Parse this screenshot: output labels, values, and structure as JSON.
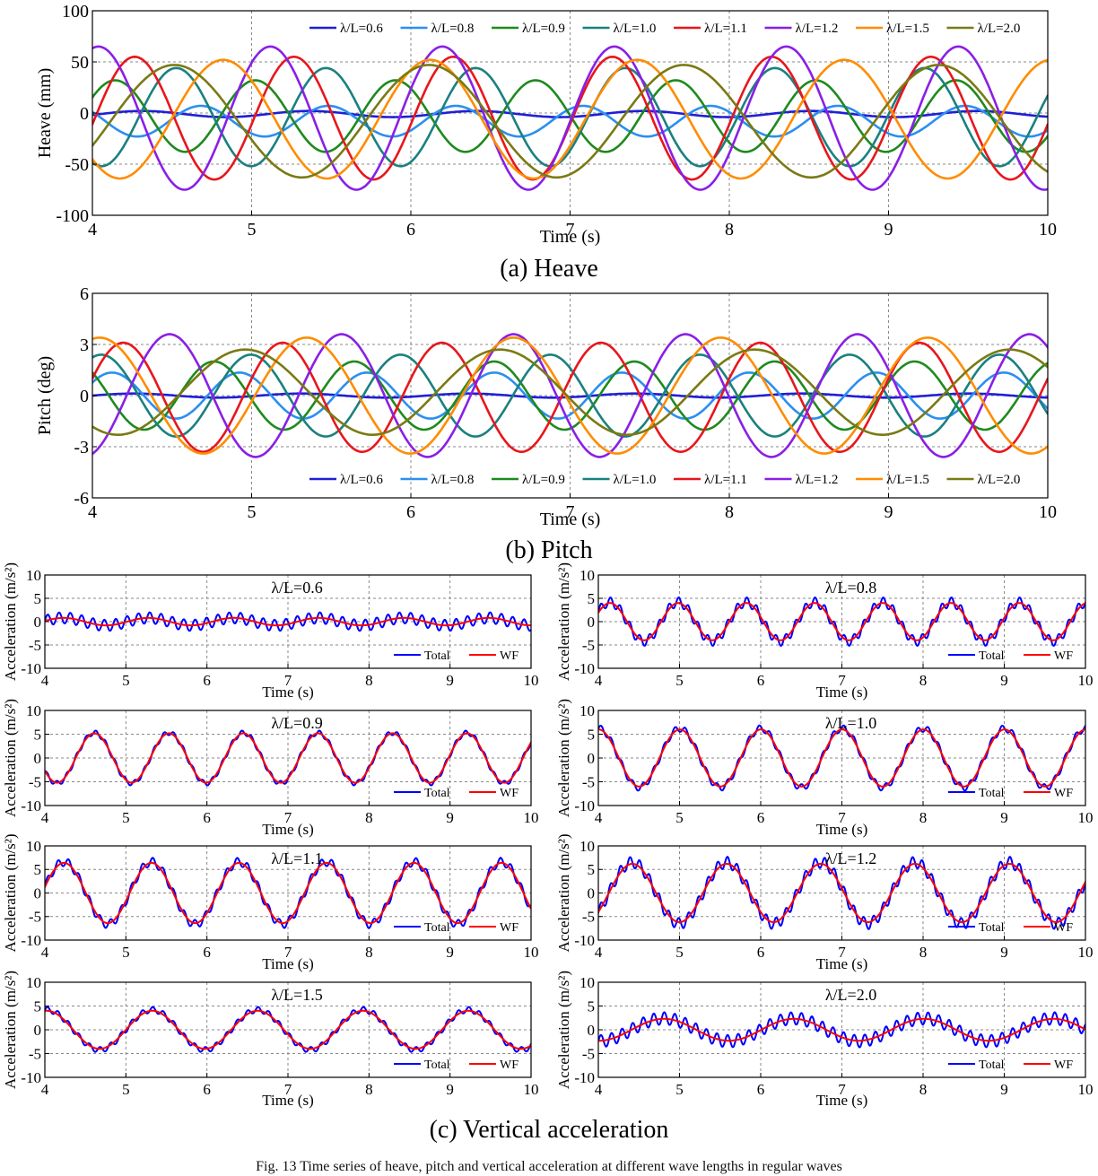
{
  "captions": {
    "a": "(a) Heave",
    "b": "(b) Pitch",
    "c": "(c) Vertical acceleration"
  },
  "bottom_caption": "Fig. 13 Time series of heave, pitch and vertical acceleration at different wave lengths in regular waves",
  "colors": {
    "lambda_0.6": "#1f1fd6",
    "lambda_0.8": "#2b8ff0",
    "lambda_0.9": "#1e8a1e",
    "lambda_1.0": "#1b8080",
    "lambda_1.1": "#e8161c",
    "lambda_1.2": "#8a1fe6",
    "lambda_1.5": "#ff8c00",
    "lambda_2.0": "#7a7a14",
    "total": "#0000ff",
    "wf": "#ff0000"
  },
  "chart_data": [
    {
      "id": "heave",
      "type": "line",
      "ylabel": "Heave (mm)",
      "xlabel": "Time (s)",
      "xlim": [
        4,
        10
      ],
      "ylim": [
        -100,
        100
      ],
      "xticks": [
        4,
        5,
        6,
        7,
        8,
        9,
        10
      ],
      "yticks": [
        -100,
        -50,
        0,
        50,
        100
      ],
      "grid": true,
      "legend_position": "top",
      "series": [
        {
          "name": "λ/L=0.6",
          "color_key": "lambda_0.6",
          "amplitude": 3,
          "period": 1.05,
          "phase": -0.3,
          "offset": -1
        },
        {
          "name": "λ/L=0.8",
          "color_key": "lambda_0.8",
          "amplitude": 15,
          "period": 0.8,
          "phase": 2.5,
          "offset": -8
        },
        {
          "name": "λ/L=0.9",
          "color_key": "lambda_0.9",
          "amplitude": 35,
          "period": 0.88,
          "phase": 0.55,
          "offset": -3
        },
        {
          "name": "λ/L=1.0",
          "color_key": "lambda_1.0",
          "amplitude": 48,
          "period": 0.94,
          "phase": -1.95,
          "offset": -4
        },
        {
          "name": "λ/L=1.1",
          "color_key": "lambda_1.1",
          "amplitude": 60,
          "period": 1.0,
          "phase": -0.1,
          "offset": -5
        },
        {
          "name": "λ/L=1.2",
          "color_key": "lambda_1.2",
          "amplitude": 70,
          "period": 1.08,
          "phase": 1.35,
          "offset": -5
        },
        {
          "name": "λ/L=1.5",
          "color_key": "lambda_1.5",
          "amplitude": 58,
          "period": 1.3,
          "phase": -2.4,
          "offset": -6
        },
        {
          "name": "λ/L=2.0",
          "color_key": "lambda_2.0",
          "amplitude": 55,
          "period": 1.6,
          "phase": -0.45,
          "offset": -8
        }
      ]
    },
    {
      "id": "pitch",
      "type": "line",
      "ylabel": "Pitch (deg)",
      "xlabel": "Time (s)",
      "xlim": [
        4,
        10
      ],
      "ylim": [
        -6,
        6
      ],
      "xticks": [
        4,
        5,
        6,
        7,
        8,
        9,
        10
      ],
      "yticks": [
        -6,
        -3,
        0,
        3,
        6
      ],
      "grid": true,
      "legend_position": "bottom",
      "series": [
        {
          "name": "λ/L=0.6",
          "color_key": "lambda_0.6",
          "amplitude": 0.12,
          "period": 1.05,
          "phase": 0.0,
          "offset": 0.0
        },
        {
          "name": "λ/L=0.8",
          "color_key": "lambda_0.8",
          "amplitude": 1.35,
          "period": 0.8,
          "phase": 0.6,
          "offset": 0.0
        },
        {
          "name": "λ/L=0.9",
          "color_key": "lambda_0.9",
          "amplitude": 2.0,
          "period": 0.88,
          "phase": 2.4,
          "offset": 0.0
        },
        {
          "name": "λ/L=1.0",
          "color_key": "lambda_1.0",
          "amplitude": 2.4,
          "period": 0.94,
          "phase": 1.2,
          "offset": 0.0
        },
        {
          "name": "λ/L=1.1",
          "color_key": "lambda_1.1",
          "amplitude": 3.2,
          "period": 1.0,
          "phase": 0.35,
          "offset": -0.1
        },
        {
          "name": "λ/L=1.2",
          "color_key": "lambda_1.2",
          "amplitude": 3.6,
          "period": 1.08,
          "phase": -1.25,
          "offset": 0.0
        },
        {
          "name": "λ/L=1.5",
          "color_key": "lambda_1.5",
          "amplitude": 3.4,
          "period": 1.3,
          "phase": 1.35,
          "offset": 0.0
        },
        {
          "name": "λ/L=2.0",
          "color_key": "lambda_2.0",
          "amplitude": 2.5,
          "period": 1.6,
          "phase": -2.2,
          "offset": 0.2
        }
      ]
    },
    {
      "id": "acc-0.6",
      "type": "line",
      "title": "λ/L=0.6",
      "ylabel": "Acceleration (m/s²)",
      "xlabel": "Time (s)",
      "xlim": [
        4,
        10
      ],
      "ylim": [
        -10,
        10
      ],
      "xticks": [
        4,
        5,
        6,
        7,
        8,
        9,
        10
      ],
      "yticks": [
        -10,
        -5,
        0,
        5,
        10
      ],
      "grid": true,
      "legend_position": "bottom-right",
      "series": [
        {
          "name": "Total",
          "color_key": "total",
          "amplitude": 0.8,
          "period": 1.05,
          "phase": 0.2,
          "hf_amplitude": 1.2,
          "hf_period": 0.14
        },
        {
          "name": "WF",
          "color_key": "wf",
          "amplitude": 0.8,
          "period": 1.05,
          "phase": 0.2
        }
      ]
    },
    {
      "id": "acc-0.8",
      "type": "line",
      "title": "λ/L=0.8",
      "ylabel": "Acceleration (m/s²)",
      "xlabel": "Time (s)",
      "xlim": [
        4,
        10
      ],
      "ylim": [
        -10,
        10
      ],
      "xticks": [
        4,
        5,
        6,
        7,
        8,
        9,
        10
      ],
      "yticks": [
        -10,
        -5,
        0,
        5,
        10
      ],
      "grid": true,
      "legend_position": "bottom-right",
      "series": [
        {
          "name": "Total",
          "color_key": "total",
          "amplitude": 4.2,
          "period": 0.84,
          "phase": 0.5,
          "hf_amplitude": 1.0,
          "hf_period": 0.12
        },
        {
          "name": "WF",
          "color_key": "wf",
          "amplitude": 4.0,
          "period": 0.84,
          "phase": 0.5
        }
      ]
    },
    {
      "id": "acc-0.9",
      "type": "line",
      "title": "λ/L=0.9",
      "ylabel": "Acceleration (m/s²)",
      "xlabel": "Time (s)",
      "xlim": [
        4,
        10
      ],
      "ylim": [
        -10,
        10
      ],
      "xticks": [
        4,
        5,
        6,
        7,
        8,
        9,
        10
      ],
      "yticks": [
        -10,
        -5,
        0,
        5,
        10
      ],
      "grid": true,
      "legend_position": "bottom-right",
      "series": [
        {
          "name": "Total",
          "color_key": "total",
          "amplitude": 5.3,
          "period": 0.92,
          "phase": -2.6,
          "hf_amplitude": 0.5,
          "hf_period": 0.12
        },
        {
          "name": "WF",
          "color_key": "wf",
          "amplitude": 5.2,
          "period": 0.92,
          "phase": -2.6
        }
      ]
    },
    {
      "id": "acc-1.0",
      "type": "line",
      "title": "λ/L=1.0",
      "ylabel": "Acceleration (m/s²)",
      "xlabel": "Time (s)",
      "xlim": [
        4,
        10
      ],
      "ylim": [
        -10,
        10
      ],
      "xticks": [
        4,
        5,
        6,
        7,
        8,
        9,
        10
      ],
      "yticks": [
        -10,
        -5,
        0,
        5,
        10
      ],
      "grid": true,
      "legend_position": "bottom-right",
      "series": [
        {
          "name": "Total",
          "color_key": "total",
          "amplitude": 6.2,
          "period": 1.0,
          "phase": 1.55,
          "hf_amplitude": 0.7,
          "hf_period": 0.13
        },
        {
          "name": "WF",
          "color_key": "wf",
          "amplitude": 6.0,
          "period": 1.0,
          "phase": 1.55
        }
      ]
    },
    {
      "id": "acc-1.1",
      "type": "line",
      "title": "λ/L=1.1",
      "ylabel": "Acceleration (m/s²)",
      "xlabel": "Time (s)",
      "xlim": [
        4,
        10
      ],
      "ylim": [
        -10,
        10
      ],
      "xticks": [
        4,
        5,
        6,
        7,
        8,
        9,
        10
      ],
      "yticks": [
        -10,
        -5,
        0,
        5,
        10
      ],
      "grid": true,
      "legend_position": "bottom-right",
      "series": [
        {
          "name": "Total",
          "color_key": "total",
          "amplitude": 6.6,
          "period": 1.08,
          "phase": 0.2,
          "hf_amplitude": 0.9,
          "hf_period": 0.13
        },
        {
          "name": "WF",
          "color_key": "wf",
          "amplitude": 6.4,
          "period": 1.08,
          "phase": 0.2
        }
      ]
    },
    {
      "id": "acc-1.2",
      "type": "line",
      "title": "λ/L=1.2",
      "ylabel": "Acceleration (m/s²)",
      "xlabel": "Time (s)",
      "xlim": [
        4,
        10
      ],
      "ylim": [
        -10,
        10
      ],
      "xticks": [
        4,
        5,
        6,
        7,
        8,
        9,
        10
      ],
      "yticks": [
        -10,
        -5,
        0,
        5,
        10
      ],
      "grid": true,
      "legend_position": "bottom-right",
      "series": [
        {
          "name": "Total",
          "color_key": "total",
          "amplitude": 6.5,
          "period": 1.16,
          "phase": -0.7,
          "hf_amplitude": 1.2,
          "hf_period": 0.12
        },
        {
          "name": "WF",
          "color_key": "wf",
          "amplitude": 6.2,
          "period": 1.16,
          "phase": -0.7
        }
      ]
    },
    {
      "id": "acc-1.5",
      "type": "line",
      "title": "λ/L=1.5",
      "ylabel": "Acceleration (m/s²)",
      "xlabel": "Time (s)",
      "xlim": [
        4,
        10
      ],
      "ylim": [
        -10,
        10
      ],
      "xticks": [
        4,
        5,
        6,
        7,
        8,
        9,
        10
      ],
      "yticks": [
        -10,
        -5,
        0,
        5,
        10
      ],
      "grid": true,
      "legend_position": "bottom-right",
      "series": [
        {
          "name": "Total",
          "color_key": "total",
          "amplitude": 4.2,
          "period": 1.3,
          "phase": 1.45,
          "hf_amplitude": 0.6,
          "hf_period": 0.13
        },
        {
          "name": "WF",
          "color_key": "wf",
          "amplitude": 4.0,
          "period": 1.3,
          "phase": 1.45
        }
      ]
    },
    {
      "id": "acc-2.0",
      "type": "line",
      "title": "λ/L=2.0",
      "ylabel": "Acceleration (m/s²)",
      "xlabel": "Time (s)",
      "xlim": [
        4,
        10
      ],
      "ylim": [
        -10,
        10
      ],
      "xticks": [
        4,
        5,
        6,
        7,
        8,
        9,
        10
      ],
      "yticks": [
        -10,
        -5,
        0,
        5,
        10
      ],
      "grid": true,
      "legend_position": "bottom-right",
      "series": [
        {
          "name": "Total",
          "color_key": "total",
          "amplitude": 2.4,
          "period": 1.6,
          "phase": -1.6,
          "hf_amplitude": 1.3,
          "hf_period": 0.13
        },
        {
          "name": "WF",
          "color_key": "wf",
          "amplitude": 2.3,
          "period": 1.6,
          "phase": -1.6
        }
      ]
    }
  ]
}
